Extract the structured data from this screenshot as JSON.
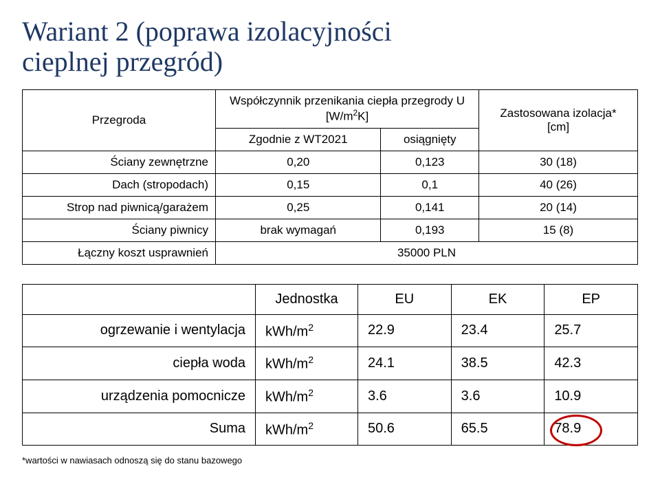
{
  "title_color": "#1F3864",
  "circle_color": "#C00000",
  "title_line1": "Wariant 2 (poprawa izolacyjności",
  "title_line2": "cieplnej przegród)",
  "t1": {
    "hdr_przegroda": "Przegroda",
    "hdr_u_line1": "Współczynnik przenikania ciepła przegrody U",
    "hdr_u_line2": "[W/m",
    "hdr_u_sup": "2",
    "hdr_u_line3": "K]",
    "hdr_izolacja_line1": "Zastosowana izolacja*",
    "hdr_izolacja_line2": "[cm]",
    "sub_zgodnie": "Zgodnie z WT2021",
    "sub_osiag": "osiągnięty",
    "rows": [
      {
        "label": "Ściany zewnętrzne",
        "a": "0,20",
        "b": "0,123",
        "c": "30 (18)"
      },
      {
        "label": "Dach (stropodach)",
        "a": "0,15",
        "b": "0,1",
        "c": "40 (26)"
      },
      {
        "label": "Strop nad piwnicą/garażem",
        "a": "0,25",
        "b": "0,141",
        "c": "20 (14)"
      },
      {
        "label": "Ściany piwnicy",
        "a": "brak wymagań",
        "b": "0,193",
        "c": "15 (8)"
      }
    ],
    "total_label": "Łączny koszt usprawnień",
    "total_value": "35000 PLN"
  },
  "t2": {
    "hdr_jednostka": "Jednostka",
    "hdr_eu": "EU",
    "hdr_ek": "EK",
    "hdr_ep": "EP",
    "unit_prefix": "kWh/m",
    "unit_sup": "2",
    "rows": [
      {
        "label": "ogrzewanie i wentylacja",
        "eu": "22.9",
        "ek": "23.4",
        "ep": "25.7"
      },
      {
        "label": "ciepła woda",
        "eu": "24.1",
        "ek": "38.5",
        "ep": "42.3"
      },
      {
        "label": "urządzenia pomocnicze",
        "eu": "3.6",
        "ek": "3.6",
        "ep": "10.9"
      },
      {
        "label": "Suma",
        "eu": "50.6",
        "ek": "65.5",
        "ep": "78.9"
      }
    ]
  },
  "footnote": "*wartości w nawiasach odnoszą się do stanu bazowego"
}
